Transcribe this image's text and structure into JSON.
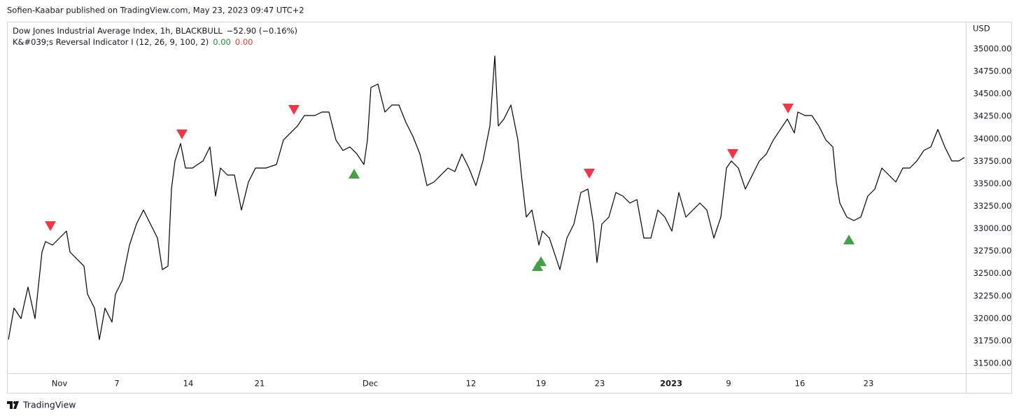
{
  "header": {
    "published": "Sofien-Kaabar published on TradingView.com, May 23, 2023 09:47 UTC+2"
  },
  "footer": {
    "brand": "TradingView"
  },
  "chart_data": {
    "type": "line",
    "y_axis_label": "USD",
    "series": [
      {
        "name": "Dow Jones Industrial Average Index, 1h, BLACKBULL",
        "change": "−52.90 (−0.16%)",
        "color": "#000000",
        "x": [
          -3.65,
          -3.25,
          -2.75,
          -2.25,
          -1.75,
          -1.25,
          -1,
          -0.5,
          0,
          0.5,
          0.75,
          1.25,
          1.75,
          2,
          2.5,
          2.85,
          3.25,
          3.75,
          4,
          4.5,
          5,
          5.5,
          6,
          6.5,
          7,
          7.35,
          7.75,
          8,
          8.25,
          8.65,
          9,
          9.5,
          10.25,
          10.75,
          11.15,
          11.5,
          12,
          12.5,
          13,
          13.5,
          14,
          14.75,
          15.5,
          16,
          16.5,
          17,
          17.5,
          18.25,
          18.75,
          19.25,
          19.75,
          20.25,
          20.75,
          21.25,
          21.75,
          22,
          22.25,
          22.75,
          23.25,
          23.75,
          24.25,
          24.75,
          25.25,
          25.75,
          26.25,
          26.75,
          27.25,
          27.75,
          28.25,
          28.75,
          29.25,
          29.75,
          30.25,
          30.75,
          31.1,
          31.35,
          31.75,
          32.25,
          32.75,
          33,
          33.35,
          33.75,
          34.25,
          34.5,
          35,
          35.5,
          35.75,
          36.25,
          36.75,
          37.25,
          37.75,
          38.15,
          38.4,
          38.75,
          39.25,
          39.75,
          40.25,
          40.75,
          41.25,
          41.75,
          42.25,
          42.75,
          43.25,
          43.75,
          44.25,
          44.75,
          45.25,
          45.75,
          46.25,
          46.75,
          47.25,
          47.65,
          48,
          48.5,
          49,
          49.5,
          50,
          50.5,
          51,
          51.5,
          52,
          52.5,
          52.75,
          53.25,
          53.75,
          54.25,
          54.75,
          55.25,
          55.5,
          55.75,
          56.25,
          56.75,
          57.25,
          57.75,
          58.25,
          58.75,
          59.25,
          59.75,
          60.25,
          60.75,
          61.25,
          61.75,
          62.25,
          62.75,
          63.25,
          63.75,
          64.25,
          64.65
        ],
        "values": [
          31765,
          32116,
          31999,
          32350,
          31999,
          32739,
          32856,
          32817,
          32895,
          32973,
          32739,
          32661,
          32583,
          32272,
          32116,
          31765,
          32116,
          31960,
          32272,
          32428,
          32817,
          33051,
          33207,
          33051,
          32895,
          32544,
          32583,
          33441,
          33753,
          33948,
          33675,
          33675,
          33753,
          33909,
          33363,
          33675,
          33597,
          33597,
          33207,
          33519,
          33675,
          33675,
          33714,
          33987,
          34065,
          34143,
          34259,
          34259,
          34298,
          34298,
          33987,
          33870,
          33909,
          33831,
          33714,
          33987,
          34571,
          34610,
          34298,
          34376,
          34376,
          34182,
          34026,
          33831,
          33480,
          33519,
          33597,
          33675,
          33636,
          33831,
          33675,
          33480,
          33753,
          34143,
          34922,
          34143,
          34220,
          34376,
          33987,
          33597,
          33129,
          33207,
          32817,
          32973,
          32895,
          32661,
          32544,
          32895,
          33051,
          33402,
          33441,
          33051,
          32622,
          33051,
          33129,
          33402,
          33363,
          33285,
          33324,
          32895,
          32895,
          33207,
          33129,
          32973,
          33402,
          33129,
          33207,
          33285,
          33207,
          32895,
          33129,
          33675,
          33753,
          33675,
          33441,
          33597,
          33753,
          33831,
          33987,
          34104,
          34220,
          34065,
          34298,
          34259,
          34259,
          34143,
          33987,
          33909,
          33519,
          33285,
          33129,
          33090,
          33129,
          33363,
          33441,
          33675,
          33597,
          33519,
          33675,
          33675,
          33753,
          33870,
          33909,
          34104,
          33909,
          33753,
          33753,
          33792
        ]
      }
    ],
    "indicator": {
      "name": "K&#039;s Reversal Indicator I (12, 26, 9, 100, 2)",
      "values": [
        0,
        0
      ],
      "value_labels": [
        "0.00",
        "0.00"
      ],
      "colors": [
        "#1e8a3a",
        "#e53935"
      ],
      "bearish": {
        "color": "#f23645",
        "x": [
          -0.65,
          8.75,
          16.75,
          37.85,
          48.1,
          52.05
        ],
        "values": [
          33028,
          34049,
          34322,
          33612,
          33831,
          34337
        ]
      },
      "bullish": {
        "color": "#43a047",
        "x": [
          21.05,
          34.15,
          34.4,
          56.4
        ],
        "values": [
          33612,
          32583,
          32638,
          32880
        ]
      }
    },
    "xlim": [
      -3.75,
      64.75
    ],
    "xticks": [
      {
        "value": 0,
        "label": "Nov"
      },
      {
        "value": 4.1,
        "label": "7"
      },
      {
        "value": 9.2,
        "label": "14"
      },
      {
        "value": 14.3,
        "label": "21"
      },
      {
        "value": 22.2,
        "label": "Dec"
      },
      {
        "value": 29.4,
        "label": "12"
      },
      {
        "value": 34.4,
        "label": "19"
      },
      {
        "value": 38.6,
        "label": "23"
      },
      {
        "value": 43.7,
        "label": "2023"
      },
      {
        "value": 47.8,
        "label": "9"
      },
      {
        "value": 52.9,
        "label": "16"
      },
      {
        "value": 57.8,
        "label": "23"
      }
    ],
    "ylim": [
      31391,
      35288
    ],
    "yticks": [
      {
        "value": 31500,
        "label": "31500.00"
      },
      {
        "value": 31750,
        "label": "31750.00"
      },
      {
        "value": 32000,
        "label": "32000.00"
      },
      {
        "value": 32250,
        "label": "32250.00"
      },
      {
        "value": 32500,
        "label": "32500.00"
      },
      {
        "value": 32750,
        "label": "32750.00"
      },
      {
        "value": 33000,
        "label": "33000.00"
      },
      {
        "value": 33250,
        "label": "33250.00"
      },
      {
        "value": 33500,
        "label": "33500.00"
      },
      {
        "value": 33750,
        "label": "33750.00"
      },
      {
        "value": 34000,
        "label": "34000.00"
      },
      {
        "value": 34250,
        "label": "34250.00"
      },
      {
        "value": 34500,
        "label": "34500.00"
      },
      {
        "value": 34750,
        "label": "34750.00"
      },
      {
        "value": 35000,
        "label": "35000.00"
      }
    ],
    "grid": false
  }
}
